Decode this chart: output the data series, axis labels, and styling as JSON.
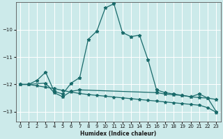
{
  "xlabel": "Humidex (Indice chaleur)",
  "bg_color": "#cceaea",
  "grid_color": "#ffffff",
  "line_color": "#1a6b6b",
  "xlim": [
    -0.5,
    23.5
  ],
  "ylim": [
    -13.35,
    -9.0
  ],
  "yticks": [
    -13,
    -12,
    -11,
    -10
  ],
  "xticks": [
    0,
    1,
    2,
    3,
    4,
    5,
    6,
    7,
    8,
    9,
    10,
    11,
    12,
    13,
    14,
    15,
    16,
    17,
    18,
    19,
    20,
    21,
    22,
    23
  ],
  "line1_x": [
    0,
    1,
    2,
    3,
    4,
    5,
    6,
    7,
    8,
    9,
    10,
    11,
    12,
    13,
    14,
    15,
    16,
    17,
    18,
    19,
    20,
    21,
    22,
    23
  ],
  "line1_y": [
    -12.0,
    -12.0,
    -11.85,
    -11.55,
    -12.25,
    -12.35,
    -11.95,
    -11.75,
    -10.35,
    -10.05,
    -9.2,
    -9.05,
    -10.1,
    -10.25,
    -10.2,
    -11.1,
    -12.2,
    -12.3,
    -12.35,
    -12.4,
    -12.45,
    -12.35,
    -12.5,
    -13.0
  ],
  "line2_x": [
    0,
    1,
    3,
    4,
    5,
    6,
    7,
    16,
    17,
    18,
    19,
    20,
    21,
    22,
    23
  ],
  "line2_y": [
    -12.0,
    -12.0,
    -11.95,
    -12.3,
    -12.45,
    -12.25,
    -12.2,
    -12.3,
    -12.35,
    -12.38,
    -12.4,
    -12.45,
    -12.48,
    -12.5,
    -12.55
  ],
  "line3_x": [
    0,
    1,
    2,
    3,
    4,
    5,
    6,
    7,
    8,
    9,
    10,
    11,
    12,
    13,
    14,
    15,
    16,
    17,
    18,
    19,
    20,
    21,
    22,
    23
  ],
  "line3_y": [
    -12.0,
    -12.0,
    -12.05,
    -12.1,
    -12.15,
    -12.22,
    -12.28,
    -12.33,
    -12.37,
    -12.4,
    -12.43,
    -12.46,
    -12.49,
    -12.52,
    -12.55,
    -12.58,
    -12.61,
    -12.64,
    -12.67,
    -12.7,
    -12.73,
    -12.76,
    -12.85,
    -13.02
  ]
}
